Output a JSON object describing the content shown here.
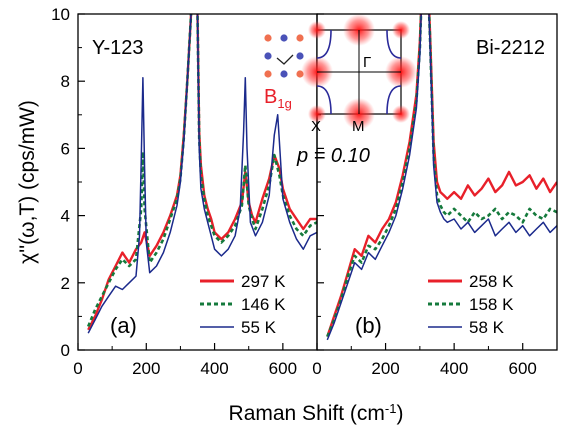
{
  "chart_data": {
    "type": "line",
    "xlabel": "Raman Shift (cm",
    "xlabel_sup": "-1",
    "xlabel_suffix": ")",
    "ylabel": "χ''(ω,T)  (cps/mW)",
    "annotation_doping": "p = 0.10",
    "inset": {
      "symmetry_base": "B",
      "symmetry_sub": "1g",
      "label_x": "X",
      "label_m": "M",
      "label_gamma": "Γ"
    },
    "colors": {
      "hot": "#e8202a",
      "mid": "#157a3c",
      "cold": "#1b2a8c"
    },
    "panels": [
      {
        "name": "Y-123",
        "letter": "(a)",
        "xlim": [
          0,
          700
        ],
        "ylim": [
          0,
          10
        ],
        "xticks": [
          0,
          200,
          400,
          600
        ],
        "yticks": [
          0,
          2,
          4,
          6,
          8,
          10
        ],
        "series": [
          {
            "name": "297 K",
            "style": "solid",
            "color_key": "hot",
            "x": [
              30,
              50,
              70,
              90,
              110,
              130,
              150,
              170,
              185,
              195,
              210,
              230,
              250,
              270,
              290,
              300,
              310,
              320,
              330,
              340,
              345,
              350,
              355,
              360,
              370,
              380,
              390,
              400,
              420,
              440,
              460,
              480,
              490,
              500,
              510,
              520,
              540,
              560,
              575,
              590,
              600,
              620,
              640,
              660,
              680,
              700
            ],
            "y": [
              0.6,
              1.0,
              1.5,
              2.1,
              2.5,
              2.9,
              2.6,
              3.0,
              3.2,
              3.5,
              2.8,
              3.1,
              3.5,
              4.0,
              4.6,
              5.2,
              6.4,
              8.0,
              9.8,
              12,
              12,
              10,
              6.5,
              5.5,
              4.6,
              4.2,
              3.9,
              3.5,
              3.3,
              3.5,
              3.9,
              4.4,
              5.3,
              4.4,
              4.0,
              3.8,
              4.5,
              5.1,
              5.8,
              5.4,
              4.8,
              4.2,
              3.9,
              3.6,
              3.9,
              3.9
            ]
          },
          {
            "name": "146 K",
            "style": "dashed",
            "color_key": "mid",
            "x": [
              30,
              50,
              70,
              90,
              110,
              130,
              150,
              170,
              185,
              190,
              195,
              210,
              230,
              250,
              270,
              290,
              300,
              310,
              320,
              330,
              340,
              345,
              350,
              355,
              360,
              370,
              380,
              390,
              400,
              420,
              440,
              460,
              480,
              490,
              500,
              510,
              520,
              540,
              560,
              575,
              590,
              600,
              620,
              640,
              660,
              680,
              700
            ],
            "y": [
              0.7,
              1.2,
              1.6,
              2.0,
              2.4,
              2.7,
              2.5,
              2.7,
              4.2,
              5.9,
              4.2,
              2.6,
              2.9,
              3.3,
              3.9,
              4.5,
              5.1,
              6.3,
              8.0,
              9.8,
              12,
              12,
              10,
              6.3,
              5.2,
              4.5,
              4.0,
              3.7,
              3.4,
              3.2,
              3.4,
              3.7,
              4.3,
              5.5,
              4.3,
              3.9,
              3.6,
              4.2,
              4.9,
              5.8,
              5.2,
              4.6,
              4.0,
              3.6,
              3.4,
              3.7,
              3.8
            ]
          },
          {
            "name": "55 K",
            "style": "solid",
            "color_key": "cold",
            "x": [
              30,
              50,
              70,
              90,
              110,
              130,
              150,
              170,
              180,
              185,
              190,
              195,
              200,
              210,
              230,
              250,
              270,
              290,
              300,
              310,
              320,
              330,
              340,
              345,
              350,
              355,
              360,
              370,
              380,
              390,
              400,
              420,
              440,
              460,
              475,
              485,
              490,
              495,
              505,
              520,
              540,
              560,
              575,
              585,
              590,
              600,
              620,
              640,
              660,
              680,
              700
            ],
            "y": [
              0.5,
              0.9,
              1.3,
              1.6,
              1.9,
              1.8,
              2.0,
              2.2,
              3.4,
              5.6,
              8.1,
              5.4,
              3.2,
              2.3,
              2.5,
              2.9,
              3.5,
              4.3,
              5.0,
              6.2,
              8.0,
              9.8,
              12,
              12,
              10,
              6.0,
              4.8,
              4.2,
              3.8,
              3.4,
              3.0,
              2.8,
              3.0,
              3.4,
              4.2,
              6.5,
              8.1,
              6.0,
              3.8,
              3.4,
              3.8,
              4.6,
              6.4,
              7.0,
              6.2,
              4.5,
              3.8,
              3.3,
              3.0,
              3.4,
              3.5
            ]
          }
        ]
      },
      {
        "name": "Bi-2212",
        "letter": "(b)",
        "xlim": [
          0,
          700
        ],
        "ylim": [
          0,
          10
        ],
        "xticks": [
          0,
          200,
          400,
          600
        ],
        "yticks": [],
        "series": [
          {
            "name": "258 K",
            "style": "solid",
            "color_key": "hot",
            "x": [
              30,
              50,
              70,
              90,
              110,
              130,
              150,
              170,
              190,
              210,
              230,
              250,
              270,
              290,
              300,
              310,
              320,
              330,
              340,
              350,
              360,
              370,
              380,
              400,
              420,
              440,
              460,
              480,
              500,
              520,
              540,
              560,
              580,
              600,
              620,
              640,
              660,
              680,
              700
            ],
            "y": [
              0.4,
              1.0,
              1.6,
              2.3,
              3.0,
              2.8,
              3.4,
              3.2,
              3.6,
              3.9,
              4.4,
              5.2,
              6.2,
              7.6,
              9.2,
              12,
              12,
              9.4,
              6.2,
              5.0,
              4.7,
              4.6,
              4.5,
              4.7,
              4.5,
              4.9,
              4.6,
              4.8,
              5.1,
              4.7,
              4.9,
              5.3,
              4.9,
              5.0,
              5.2,
              4.8,
              5.1,
              4.7,
              5.0
            ]
          },
          {
            "name": "158 K",
            "style": "dashed",
            "color_key": "mid",
            "x": [
              30,
              50,
              70,
              90,
              110,
              130,
              150,
              170,
              190,
              210,
              230,
              250,
              270,
              290,
              300,
              310,
              320,
              330,
              340,
              350,
              360,
              370,
              380,
              400,
              420,
              440,
              460,
              480,
              500,
              520,
              540,
              560,
              580,
              600,
              620,
              640,
              660,
              680,
              700
            ],
            "y": [
              0.4,
              0.9,
              1.5,
              2.2,
              2.8,
              2.6,
              3.1,
              3.0,
              3.3,
              3.7,
              4.2,
              5.0,
              6.0,
              7.4,
              9.0,
              12,
              12,
              9.2,
              5.8,
              4.6,
              4.3,
              4.1,
              4.0,
              4.2,
              4.0,
              3.8,
              4.1,
              3.9,
              4.0,
              4.2,
              3.9,
              4.1,
              4.0,
              3.8,
              4.2,
              4.0,
              3.9,
              4.2,
              4.1
            ]
          },
          {
            "name": "58 K",
            "style": "solid",
            "color_key": "cold",
            "x": [
              30,
              50,
              70,
              90,
              110,
              130,
              150,
              170,
              190,
              210,
              230,
              250,
              270,
              290,
              300,
              310,
              320,
              330,
              340,
              350,
              360,
              370,
              380,
              400,
              420,
              440,
              460,
              480,
              500,
              520,
              540,
              560,
              580,
              600,
              620,
              640,
              660,
              680,
              700
            ],
            "y": [
              0.3,
              0.8,
              1.4,
              2.0,
              2.6,
              2.4,
              2.9,
              2.7,
              3.1,
              3.5,
              4.0,
              4.8,
              5.8,
              7.2,
              8.8,
              12,
              12,
              9.0,
              5.5,
              4.4,
              4.1,
              3.9,
              3.8,
              3.9,
              3.6,
              3.8,
              3.5,
              3.7,
              3.9,
              3.4,
              3.6,
              3.8,
              3.5,
              3.7,
              3.4,
              3.6,
              3.8,
              3.5,
              3.7
            ]
          }
        ]
      }
    ]
  }
}
